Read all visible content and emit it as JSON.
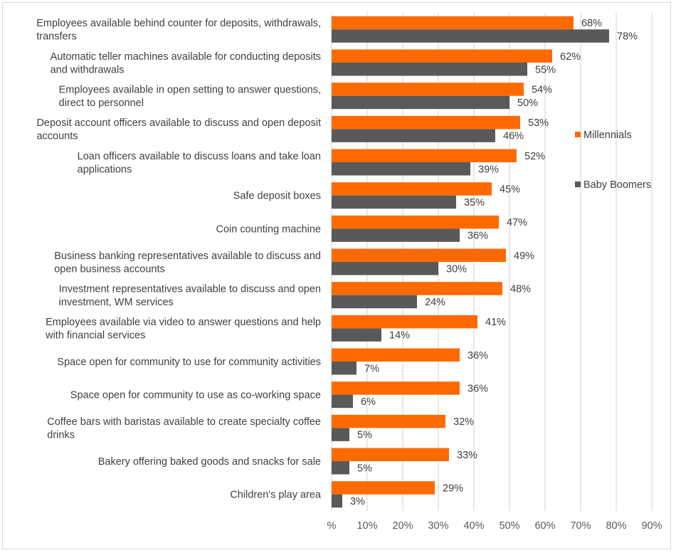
{
  "chart_data": {
    "type": "bar",
    "orientation": "horizontal",
    "categories": [
      [
        "Employees available behind counter for deposits, withdrawals,",
        "transfers"
      ],
      [
        "Automatic teller machines available for conducting deposits",
        "and withdrawals"
      ],
      [
        "Employees available in open setting to answer questions,",
        "direct to personnel"
      ],
      [
        "Deposit account officers available to discuss and open deposit",
        "accounts"
      ],
      [
        "Loan officers available to discuss loans and take loan",
        "applications"
      ],
      [
        "Safe deposit boxes"
      ],
      [
        "Coin counting machine"
      ],
      [
        "Business banking representatives available to discuss and",
        "open business accounts"
      ],
      [
        "Investment representatives available to discuss and open",
        "investment, WM services"
      ],
      [
        "Employees available via video to answer questions and help",
        "with financial services"
      ],
      [
        "Space open for community to use for community activities"
      ],
      [
        "Space open for community to use as co-working space"
      ],
      [
        "Coffee bars with baristas available to create specialty coffee",
        "drinks"
      ],
      [
        "Bakery offering baked goods and snacks for sale"
      ],
      [
        "Children's play area"
      ]
    ],
    "series": [
      {
        "name": "Millennials",
        "color": "#ff6a00",
        "values": [
          68,
          62,
          54,
          53,
          52,
          45,
          47,
          49,
          48,
          41,
          36,
          36,
          32,
          33,
          29
        ],
        "labels": [
          "68%",
          "62%",
          "54%",
          "53%",
          "52%",
          "45%",
          "47%",
          "49%",
          "48%",
          "41%",
          "36%",
          "36%",
          "32%",
          "33%",
          "29%"
        ]
      },
      {
        "name": "Baby Boomers",
        "color": "#595959",
        "values": [
          78,
          55,
          50,
          46,
          39,
          35,
          36,
          30,
          24,
          14,
          7,
          6,
          5,
          5,
          3
        ],
        "labels": [
          "78%",
          "55%",
          "50%",
          "46%",
          "39%",
          "35%",
          "36%",
          "30%",
          "24%",
          "14%",
          "7%",
          "6%",
          "5%",
          "5%",
          "3%"
        ]
      }
    ],
    "xlim": [
      0,
      90
    ],
    "xticks": [
      0,
      10,
      20,
      30,
      40,
      50,
      60,
      70,
      80,
      90
    ],
    "xtick_labels": [
      "%",
      "10%",
      "20%",
      "30%",
      "40%",
      "50%",
      "60%",
      "70%",
      "80%",
      "90%"
    ],
    "grid": "vertical",
    "gridline_color": "#d9d9d9",
    "legend_position": "right"
  }
}
